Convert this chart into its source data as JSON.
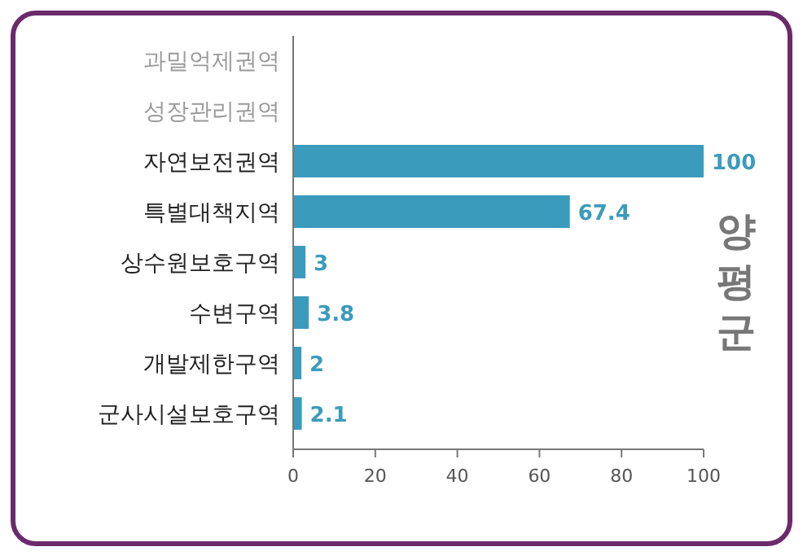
{
  "chart_data": {
    "type": "bar",
    "orientation": "horizontal",
    "categories": [
      "과밀억제권역",
      "성장관리권역",
      "자연보전권역",
      "특별대책지역",
      "상수원보호구역",
      "수변구역",
      "개발제한구역",
      "군사시설보호구역"
    ],
    "values": [
      null,
      null,
      100,
      67.4,
      3,
      3.8,
      2,
      2.1
    ],
    "color": "#3b9bbd",
    "data_labels": true,
    "xlim": [
      0,
      100
    ],
    "xticks": [
      0,
      20,
      40,
      60,
      80,
      100
    ],
    "annotations": [
      "양평군"
    ]
  }
}
